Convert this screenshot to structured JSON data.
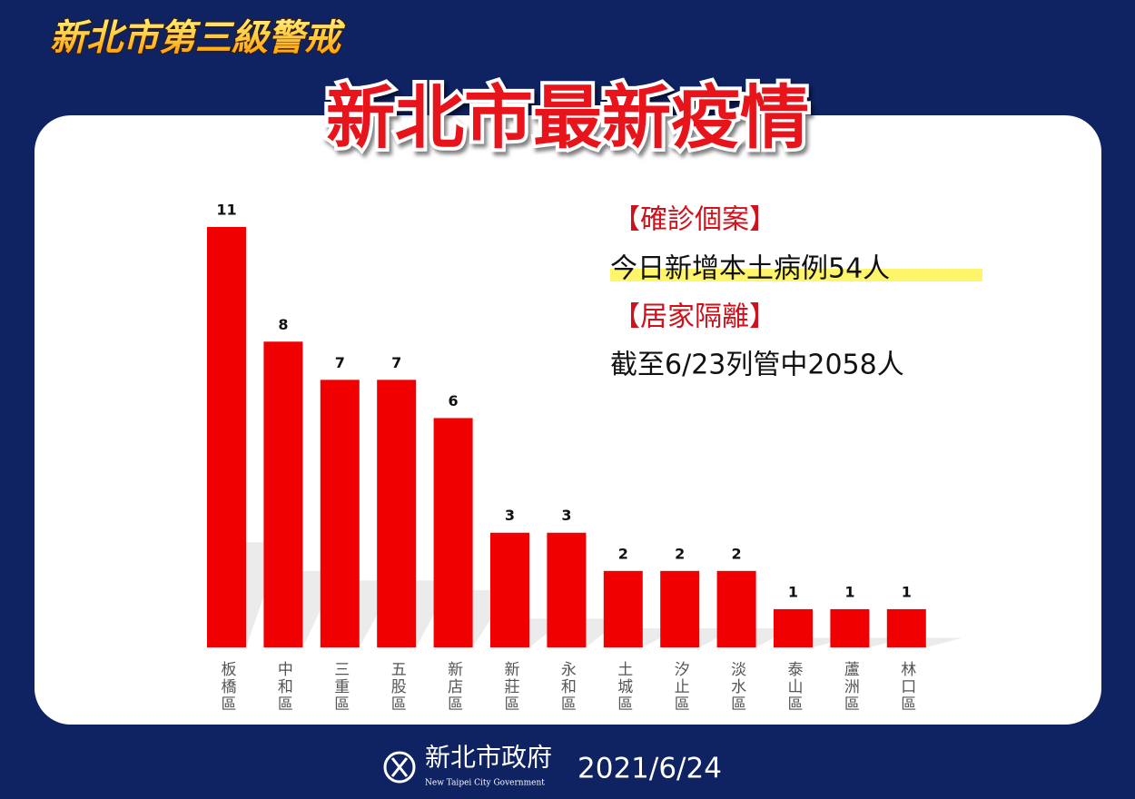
{
  "banner": "新北市第三級警戒",
  "chart_data": {
    "type": "bar",
    "title": "新北市最新疫情",
    "categories": [
      "板橋區",
      "中和區",
      "三重區",
      "五股區",
      "新店區",
      "新莊區",
      "永和區",
      "土城區",
      "汐止區",
      "淡水區",
      "泰山區",
      "蘆洲區",
      "林口區"
    ],
    "values": [
      11,
      8,
      7,
      7,
      6,
      3,
      3,
      2,
      2,
      2,
      1,
      1,
      1
    ],
    "color": "#f00000"
  },
  "notes": [
    {
      "heading": "【確診個案】",
      "text": "今日新增本土病例54人"
    },
    {
      "heading": "【居家隔離】",
      "text": "截至6/23列管中2058人"
    }
  ],
  "footer": {
    "org": "新北市政府",
    "org_en": "New Taipei City Government",
    "date": "2021/6/24"
  }
}
